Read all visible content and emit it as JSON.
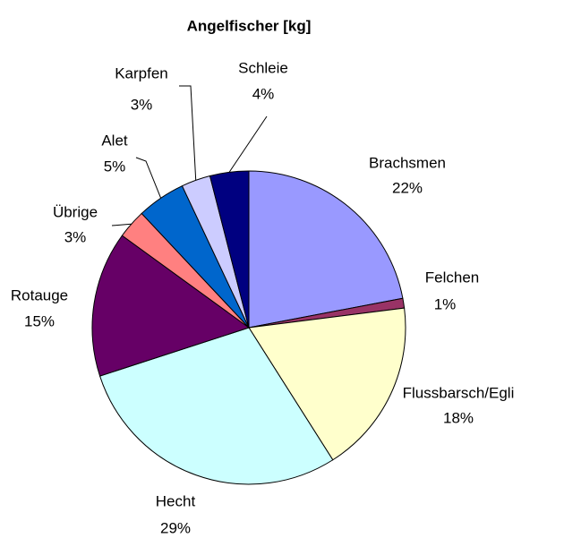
{
  "chart_data": {
    "type": "pie",
    "title": "Angelfischer [kg]",
    "categories": [
      "Brachsmen",
      "Felchen",
      "Flussbarsch/Egli",
      "Hecht",
      "Rotauge",
      "Übrige",
      "Alet",
      "Karpfen",
      "Schleie"
    ],
    "values": [
      22,
      1,
      18,
      29,
      15,
      3,
      5,
      3,
      4
    ],
    "value_labels": [
      "22%",
      "1%",
      "18%",
      "29%",
      "15%",
      "3%",
      "5%",
      "3%",
      "4%"
    ],
    "colors": [
      "#9999FF",
      "#993366",
      "#FFFFCC",
      "#CCFFFF",
      "#660066",
      "#FF8080",
      "#0066CC",
      "#CCCCFF",
      "#000080"
    ]
  }
}
